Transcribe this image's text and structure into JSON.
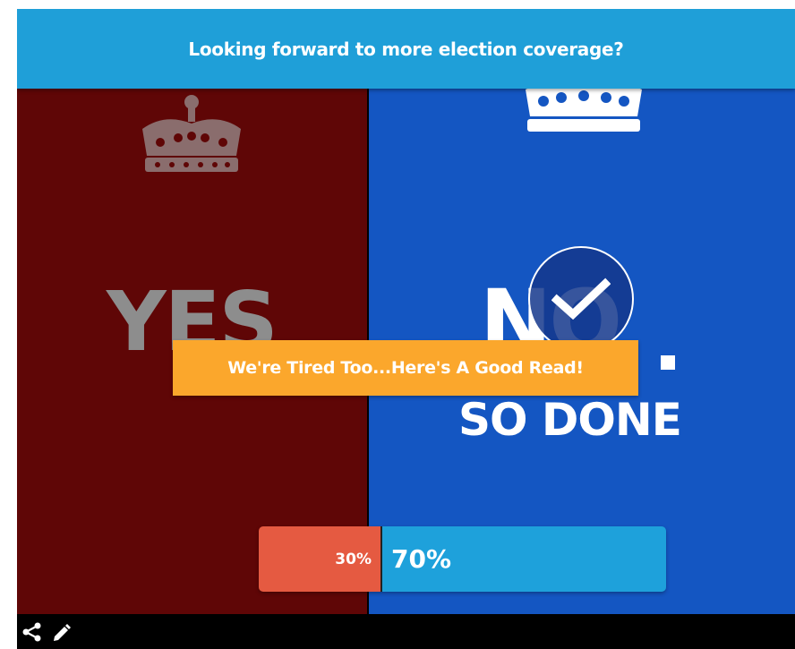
{
  "poll": {
    "question": "Looking forward to more election coverage?",
    "yes_option": {
      "word": "YES",
      "bg_color": "#5f0606",
      "icon": "crown-icon"
    },
    "no_option": {
      "word": "NO",
      "second_line": "SO DONE",
      "bg_color": "#1456c2",
      "icon": "crown-icon",
      "selected": true,
      "selected_icon": "checkmark-icon"
    },
    "cta_label": "We're Tired Too...Here's A Good Read!",
    "results": {
      "yes_label": "30%",
      "no_label": "70%",
      "yes_fraction": 0.3,
      "no_fraction": 0.7,
      "yes_color": "#e55a41",
      "no_color": "#1ea1db"
    }
  },
  "footer": {
    "icons": [
      "share-icon",
      "pencil-icon"
    ]
  },
  "colors": {
    "header": "#1f9fd8",
    "cta": "#fba72c"
  }
}
